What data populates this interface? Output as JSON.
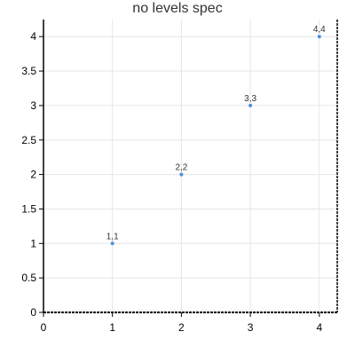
{
  "chart_data": {
    "type": "scatter",
    "title": "no levels spec",
    "xlabel": "",
    "ylabel": "",
    "xlim": [
      0,
      4.25
    ],
    "ylim": [
      0,
      4.25
    ],
    "x_ticks": [
      0,
      1,
      2,
      3,
      4
    ],
    "x_tick_labels": [
      "0",
      "1",
      "2",
      "3",
      "4"
    ],
    "y_ticks": [
      0,
      0.5,
      1,
      1.5,
      2,
      2.5,
      3,
      3.5,
      4
    ],
    "y_tick_labels": [
      "0",
      "0.5",
      "1",
      "1.5",
      "2",
      "2.5",
      "3",
      "3.5",
      "4"
    ],
    "grid": true,
    "legend": "none",
    "series": [
      {
        "color": "#4a90d9",
        "points": [
          {
            "x": 1,
            "y": 1,
            "label": "1,1"
          },
          {
            "x": 2,
            "y": 2,
            "label": "2,2"
          },
          {
            "x": 3,
            "y": 3,
            "label": "3,3"
          },
          {
            "x": 4,
            "y": 4,
            "label": "4,4"
          }
        ]
      }
    ]
  }
}
